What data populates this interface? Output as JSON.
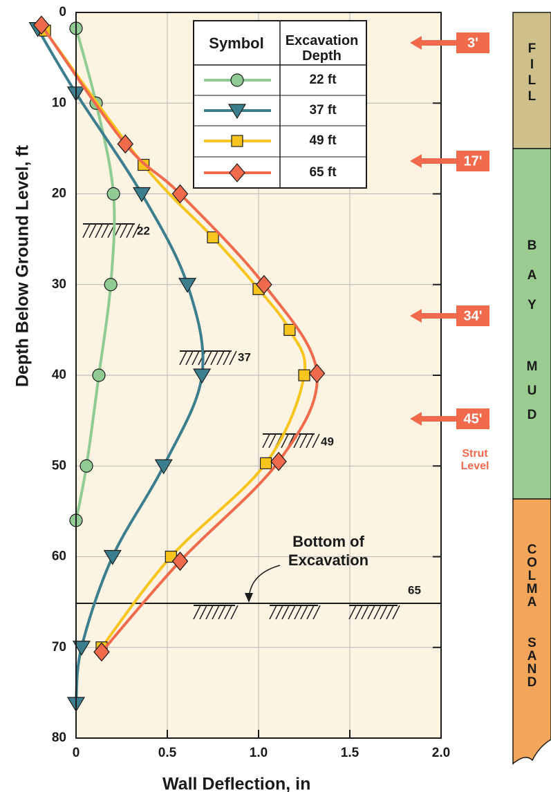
{
  "chart_data": {
    "type": "line",
    "x_label": "Wall Deflection, in",
    "y_label": "Depth Below Ground Level, ft",
    "xlim": [
      0,
      2
    ],
    "xticks": [
      0,
      0.5,
      {
        "value": 1,
        "label": "1.0"
      },
      1.5,
      {
        "value": 2,
        "label": "2.0"
      }
    ],
    "ylim": [
      0,
      80
    ],
    "yticks": [
      0,
      10,
      20,
      30,
      40,
      50,
      60,
      70,
      80
    ],
    "y_inverted": true,
    "grid": true,
    "legend_headers": [
      "Symbol",
      "Excavation Depth"
    ],
    "series": [
      {
        "name": "22 ft",
        "color": "#8fcb92",
        "marker": "circle",
        "x": [
          0,
          0.11,
          0.205,
          0.19,
          0.125,
          0.057,
          0
        ],
        "values": [
          1.75,
          10,
          20,
          30,
          40,
          50,
          56
        ]
      },
      {
        "name": "37 ft",
        "color": "#3b7f8e",
        "marker": "triangle",
        "x": [
          -0.21,
          0,
          0.36,
          0.61,
          0.69,
          0.48,
          0.2,
          0.03,
          0
        ],
        "values": [
          1.8,
          8.9,
          20,
          30,
          40,
          50,
          60,
          70,
          76.2
        ]
      },
      {
        "name": "49 ft",
        "color": "#f7c51e",
        "marker": "square",
        "x": [
          -0.17,
          0.37,
          0.75,
          1.0,
          1.17,
          1.25,
          1.04,
          0.52,
          0.14
        ],
        "values": [
          2,
          16.8,
          24.8,
          30.5,
          35,
          40,
          49.7,
          60,
          70
        ]
      },
      {
        "name": "65 ft",
        "color": "#f16a4b",
        "marker": "diamond",
        "x": [
          -0.19,
          0.27,
          0.57,
          1.03,
          1.32,
          1.11,
          0.57,
          0.14
        ],
        "values": [
          1.4,
          14.5,
          20,
          30,
          39.8,
          49.5,
          60.5,
          70.5
        ]
      }
    ],
    "excavation_labels": [
      "22",
      "37",
      "49",
      "65"
    ],
    "bottom_label": "Bottom of Excavation",
    "strut_labels": [
      "3'",
      "17'",
      "34'",
      "45'"
    ],
    "strut_caption": "Strut Level",
    "soil_layers": [
      "FILL",
      "BAY",
      "MUD",
      "COLMA",
      "SAND"
    ]
  }
}
